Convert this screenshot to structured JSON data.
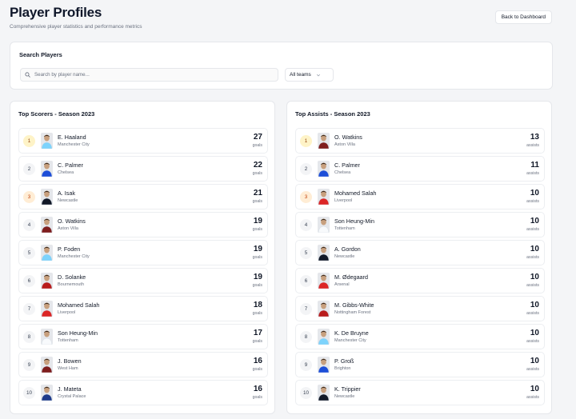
{
  "header": {
    "title": "Player Profiles",
    "subtitle": "Comprehensive player statistics and performance metrics",
    "back_label": "Back to Dashboard"
  },
  "search": {
    "title": "Search Players",
    "placeholder": "Search by player name...",
    "team_filter": "All teams"
  },
  "scorers": {
    "title": "Top Scorers - Season 2023",
    "unit": "goals",
    "rows": [
      {
        "rank": "1",
        "name": "E. Haaland",
        "team": "Manchester City",
        "value": "27",
        "kit": "#7dd3fc"
      },
      {
        "rank": "2",
        "name": "C. Palmer",
        "team": "Chelsea",
        "value": "22",
        "kit": "#1d4ed8"
      },
      {
        "rank": "3",
        "name": "A. Isak",
        "team": "Newcastle",
        "value": "21",
        "kit": "#111827"
      },
      {
        "rank": "4",
        "name": "O. Watkins",
        "team": "Aston Villa",
        "value": "19",
        "kit": "#7f1d1d"
      },
      {
        "rank": "5",
        "name": "P. Foden",
        "team": "Manchester City",
        "value": "19",
        "kit": "#7dd3fc"
      },
      {
        "rank": "6",
        "name": "D. Solanke",
        "team": "Bournemouth",
        "value": "19",
        "kit": "#b91c1c"
      },
      {
        "rank": "7",
        "name": "Mohamed Salah",
        "team": "Liverpool",
        "value": "18",
        "kit": "#dc2626"
      },
      {
        "rank": "8",
        "name": "Son Heung-Min",
        "team": "Tottenham",
        "value": "17",
        "kit": "#f8fafc"
      },
      {
        "rank": "9",
        "name": "J. Bowen",
        "team": "West Ham",
        "value": "16",
        "kit": "#7f1d1d"
      },
      {
        "rank": "10",
        "name": "J. Mateta",
        "team": "Crystal Palace",
        "value": "16",
        "kit": "#1e3a8a"
      }
    ]
  },
  "assists": {
    "title": "Top Assists - Season 2023",
    "unit": "assists",
    "rows": [
      {
        "rank": "1",
        "name": "O. Watkins",
        "team": "Aston Villa",
        "value": "13",
        "kit": "#7f1d1d"
      },
      {
        "rank": "2",
        "name": "C. Palmer",
        "team": "Chelsea",
        "value": "11",
        "kit": "#1d4ed8"
      },
      {
        "rank": "3",
        "name": "Mohamed Salah",
        "team": "Liverpool",
        "value": "10",
        "kit": "#dc2626"
      },
      {
        "rank": "4",
        "name": "Son Heung-Min",
        "team": "Tottenham",
        "value": "10",
        "kit": "#f8fafc"
      },
      {
        "rank": "5",
        "name": "A. Gordon",
        "team": "Newcastle",
        "value": "10",
        "kit": "#111827"
      },
      {
        "rank": "6",
        "name": "M. Ødegaard",
        "team": "Arsenal",
        "value": "10",
        "kit": "#dc2626"
      },
      {
        "rank": "7",
        "name": "M. Gibbs-White",
        "team": "Nottingham Forest",
        "value": "10",
        "kit": "#b91c1c"
      },
      {
        "rank": "8",
        "name": "K. De Bruyne",
        "team": "Manchester City",
        "value": "10",
        "kit": "#7dd3fc"
      },
      {
        "rank": "9",
        "name": "P. Groß",
        "team": "Brighton",
        "value": "10",
        "kit": "#1d4ed8"
      },
      {
        "rank": "10",
        "name": "K. Trippier",
        "team": "Newcastle",
        "value": "10",
        "kit": "#111827"
      }
    ]
  },
  "colors": {
    "gold_bg": "#fef3c7",
    "bronze_bg": "#ffedd5",
    "border": "#e5e7eb"
  }
}
